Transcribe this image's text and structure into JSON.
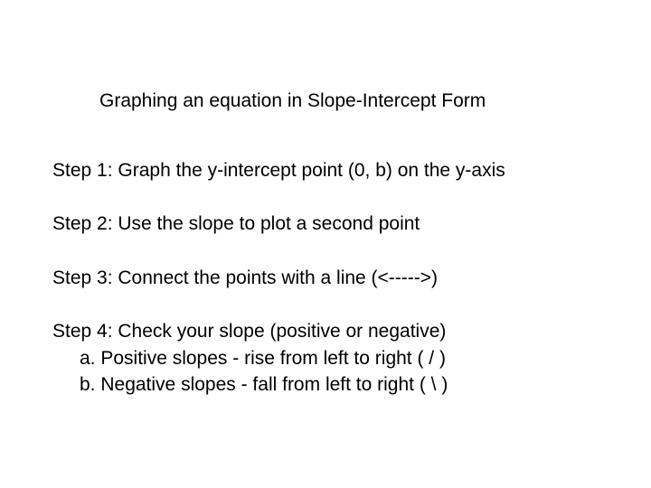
{
  "title": "Graphing an equation in Slope-Intercept Form",
  "steps": {
    "s1": "Step 1: Graph the y-intercept point (0, b) on the y-axis",
    "s2": "Step 2: Use the slope to plot a second point",
    "s3": "Step 3: Connect the points with a line (<----->)",
    "s4": "Step 4: Check your slope (positive or negative)",
    "s4a": "a. Positive slopes - rise from left to right ( / )",
    "s4b": "b. Negative slopes - fall from left to right ( \\ )"
  },
  "style": {
    "background_color": "#ffffff",
    "text_color": "#000000",
    "font_family": "Arial",
    "title_fontsize": 21,
    "body_fontsize": 21
  }
}
